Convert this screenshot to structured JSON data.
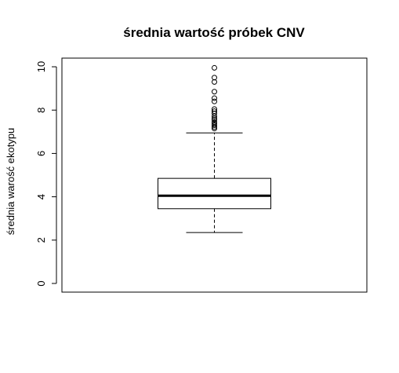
{
  "chart_data": {
    "type": "boxplot",
    "title": "średnia wartość próbek CNV",
    "xlabel": "",
    "ylabel": "średnia warość ekotypu",
    "ylim": [
      -0.4,
      10.4
    ],
    "yticks": [
      0,
      2,
      4,
      6,
      8,
      10
    ],
    "ytick_labels": [
      "0",
      "2",
      "4",
      "6",
      "8",
      "10"
    ],
    "grid": false,
    "box": {
      "whisker_low": 2.35,
      "q1": 3.45,
      "median": 4.05,
      "q3": 4.85,
      "whisker_high": 6.95
    },
    "outliers": [
      7.15,
      7.22,
      7.3,
      7.38,
      7.45,
      7.55,
      7.62,
      7.72,
      7.85,
      7.95,
      8.05,
      8.4,
      8.55,
      8.85,
      9.3,
      9.5,
      9.95
    ]
  }
}
